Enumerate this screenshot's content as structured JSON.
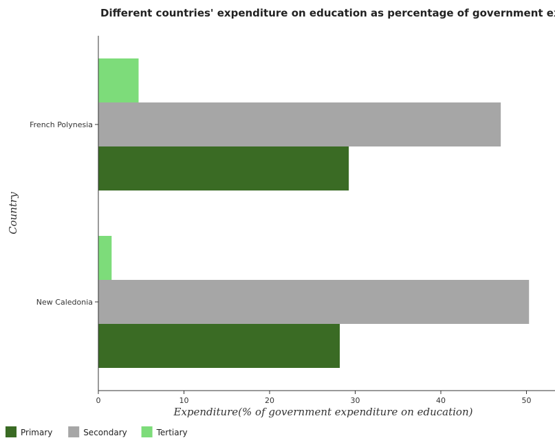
{
  "chart_data": {
    "type": "bar",
    "orientation": "horizontal",
    "title": "Different countries' expenditure on education as percentage of government expenditure",
    "xlabel": "Expenditure(% of government expenditure on education)",
    "ylabel": "Country",
    "categories": [
      "French Polynesia",
      "New Caledonia"
    ],
    "series": [
      {
        "name": "Primary",
        "values": [
          29.25,
          28.2
        ],
        "color": "#3a6b24"
      },
      {
        "name": "Secondary",
        "values": [
          47.0,
          50.3
        ],
        "color": "#a6a6a6"
      },
      {
        "name": "Tertiary",
        "values": [
          4.7,
          1.55
        ],
        "color": "#7ddc7a"
      }
    ],
    "xlim": [
      0,
      52
    ],
    "xticks": [
      0,
      10,
      20,
      30,
      40,
      50
    ],
    "grid": false,
    "legend_position": "bottom-left"
  }
}
